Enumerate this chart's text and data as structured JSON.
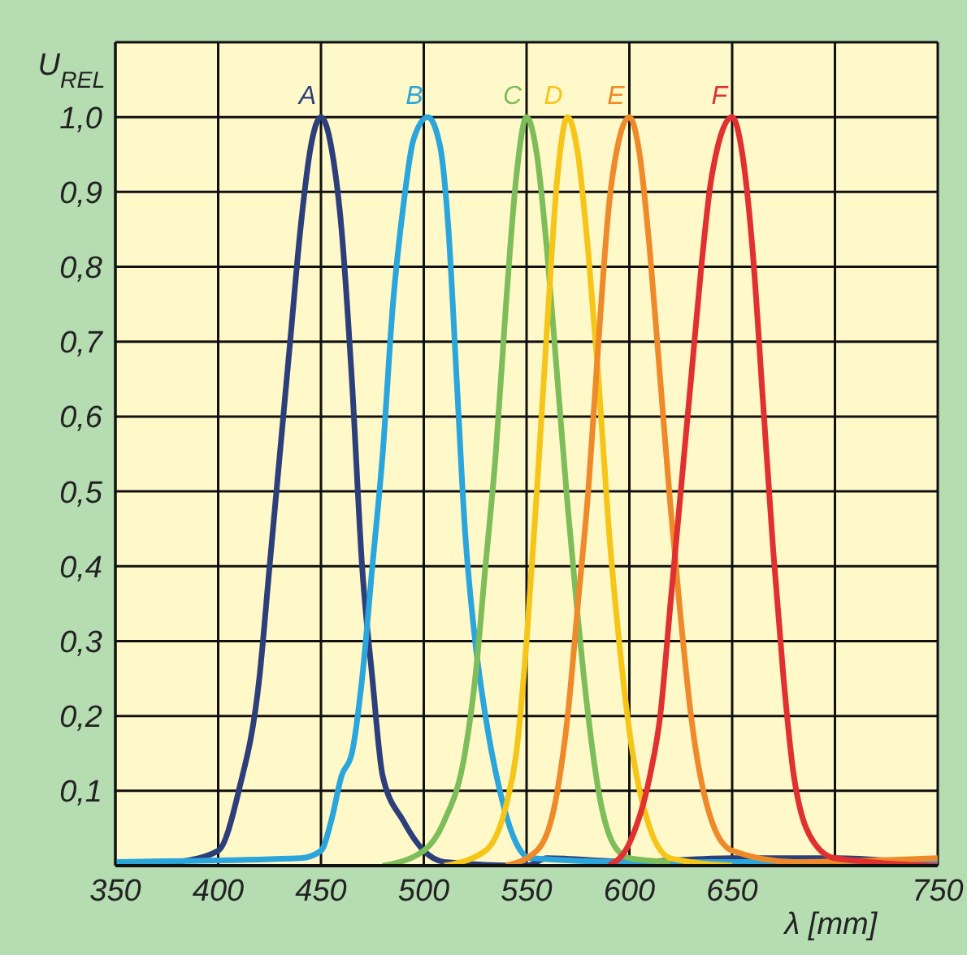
{
  "chart_data": {
    "type": "line",
    "xlabel": "λ [mm]",
    "ylabel": "U$_{REL}$",
    "xlim": [
      350,
      750
    ],
    "xticks": [
      350,
      400,
      450,
      500,
      550,
      600,
      650,
      {
        "value": 700,
        "label": null
      },
      750
    ],
    "ylim": [
      0,
      1.1
    ],
    "yticks": [
      {
        "value": 0.1,
        "label": "0,1"
      },
      {
        "value": 0.2,
        "label": "0,2"
      },
      {
        "value": 0.3,
        "label": "0,3"
      },
      {
        "value": 0.4,
        "label": "0,4"
      },
      {
        "value": 0.5,
        "label": "0,5"
      },
      {
        "value": 0.6,
        "label": "0,6"
      },
      {
        "value": 0.7,
        "label": "0,7"
      },
      {
        "value": 0.8,
        "label": "0,8"
      },
      {
        "value": 0.9,
        "label": "0,9"
      },
      {
        "value": 1.0,
        "label": "1,0"
      }
    ],
    "grid": true,
    "marker": "none",
    "line_style": "solid",
    "series": [
      {
        "name": "A",
        "color": "#2d3f7a",
        "x": [
          350,
          380,
          400,
          410,
          420,
          425,
          430,
          435,
          440,
          445,
          450,
          455,
          460,
          465,
          470,
          475,
          480,
          490,
          500,
          510,
          550,
          560,
          600,
          650,
          700,
          750
        ],
        "values": [
          0,
          0.005,
          0.02,
          0.1,
          0.25,
          0.4,
          0.55,
          0.7,
          0.85,
          0.96,
          1.0,
          0.96,
          0.85,
          0.65,
          0.4,
          0.25,
          0.12,
          0.06,
          0.02,
          0.005,
          0,
          0.01,
          0.005,
          0.01,
          0.01,
          0
        ]
      },
      {
        "name": "B",
        "color": "#2aa6dc",
        "x": [
          350,
          440,
          450,
          455,
          460,
          465,
          470,
          475,
          480,
          485,
          490,
          495,
          502,
          508,
          512,
          516,
          520,
          525,
          530,
          537,
          545,
          552,
          600,
          750
        ],
        "values": [
          0.005,
          0.01,
          0.02,
          0.06,
          0.12,
          0.15,
          0.25,
          0.4,
          0.55,
          0.75,
          0.88,
          0.97,
          1.0,
          0.96,
          0.85,
          0.65,
          0.45,
          0.3,
          0.2,
          0.1,
          0.03,
          0.01,
          0.005,
          0.005
        ]
      },
      {
        "name": "C",
        "color": "#7dbe5a",
        "x": [
          480,
          500,
          510,
          520,
          525,
          530,
          535,
          540,
          545,
          550,
          555,
          560,
          565,
          570,
          575,
          580,
          585,
          592,
          600,
          620
        ],
        "values": [
          0,
          0.02,
          0.06,
          0.15,
          0.25,
          0.4,
          0.55,
          0.75,
          0.92,
          1.0,
          0.95,
          0.82,
          0.65,
          0.48,
          0.33,
          0.2,
          0.1,
          0.03,
          0.01,
          0.005
        ]
      },
      {
        "name": "D",
        "color": "#f5c518",
        "x": [
          510,
          530,
          540,
          545,
          550,
          555,
          560,
          565,
          570,
          575,
          580,
          585,
          590,
          595,
          600,
          610,
          620,
          650
        ],
        "values": [
          0,
          0.02,
          0.08,
          0.15,
          0.3,
          0.5,
          0.72,
          0.92,
          1.0,
          0.95,
          0.82,
          0.65,
          0.45,
          0.3,
          0.18,
          0.05,
          0.01,
          0
        ]
      },
      {
        "name": "E",
        "color": "#ee8a2a",
        "x": [
          540,
          555,
          565,
          570,
          575,
          580,
          585,
          590,
          595,
          600,
          605,
          610,
          615,
          620,
          625,
          630,
          640,
          650,
          680,
          750
        ],
        "values": [
          0,
          0.02,
          0.1,
          0.2,
          0.35,
          0.5,
          0.7,
          0.88,
          0.97,
          1.0,
          0.95,
          0.82,
          0.65,
          0.48,
          0.33,
          0.2,
          0.06,
          0.02,
          0.005,
          0.01
        ]
      },
      {
        "name": "F",
        "color": "#e03030",
        "x": [
          590,
          600,
          610,
          615,
          620,
          625,
          630,
          635,
          640,
          650,
          655,
          660,
          665,
          670,
          675,
          680,
          690,
          700,
          750
        ],
        "values": [
          0,
          0.03,
          0.12,
          0.2,
          0.35,
          0.5,
          0.65,
          0.8,
          0.92,
          1.0,
          0.95,
          0.82,
          0.62,
          0.42,
          0.25,
          0.12,
          0.03,
          0.01,
          0
        ]
      }
    ]
  }
}
